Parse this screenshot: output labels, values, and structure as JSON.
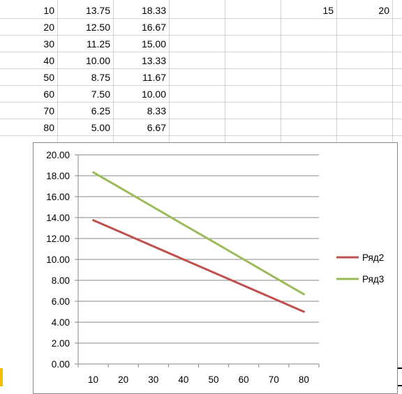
{
  "sheet": {
    "rows": [
      [
        "10",
        "13.75",
        "18.33"
      ],
      [
        "20",
        "12.50",
        "16.67"
      ],
      [
        "30",
        "11.25",
        "15.00"
      ],
      [
        "40",
        "10.00",
        "13.33"
      ],
      [
        "50",
        "8.75",
        "11.67"
      ],
      [
        "60",
        "7.50",
        "10.00"
      ],
      [
        "70",
        "6.25",
        "8.33"
      ],
      [
        "80",
        "5.00",
        "6.67"
      ]
    ],
    "extra_cells": [
      "15",
      "20"
    ]
  },
  "chart_data": {
    "type": "line",
    "x": [
      10,
      20,
      30,
      40,
      50,
      60,
      70,
      80
    ],
    "series": [
      {
        "name": "Ряд2",
        "color": "#c0504d",
        "values": [
          13.75,
          12.5,
          11.25,
          10.0,
          8.75,
          7.5,
          6.25,
          5.0
        ]
      },
      {
        "name": "Ряд3",
        "color": "#9bbb59",
        "values": [
          18.33,
          16.67,
          15.0,
          13.33,
          11.67,
          10.0,
          8.33,
          6.67
        ]
      }
    ],
    "x_tick_labels": [
      "10",
      "20",
      "30",
      "40",
      "50",
      "60",
      "70",
      "80"
    ],
    "y_tick_labels": [
      "0.00",
      "2.00",
      "4.00",
      "6.00",
      "8.00",
      "10.00",
      "12.00",
      "14.00",
      "16.00",
      "18.00",
      "20.00"
    ],
    "ylim": [
      0,
      20
    ],
    "grid": true,
    "legend_position": "right",
    "title": "",
    "xlabel": "",
    "ylabel": ""
  }
}
